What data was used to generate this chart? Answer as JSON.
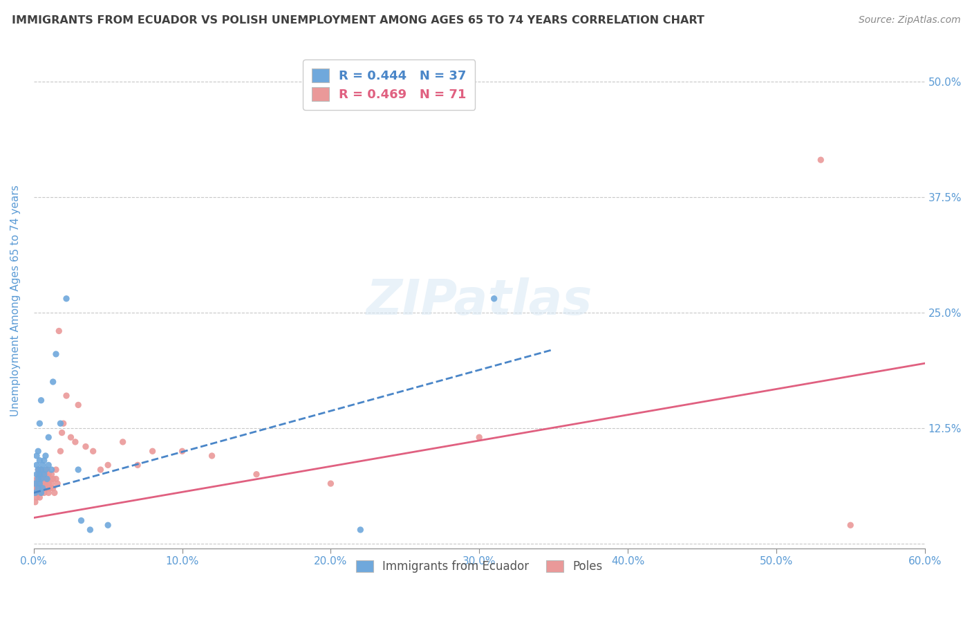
{
  "title": "IMMIGRANTS FROM ECUADOR VS POLISH UNEMPLOYMENT AMONG AGES 65 TO 74 YEARS CORRELATION CHART",
  "source": "Source: ZipAtlas.com",
  "ylabel": "Unemployment Among Ages 65 to 74 years",
  "xlim": [
    0.0,
    0.6
  ],
  "ylim": [
    -0.005,
    0.53
  ],
  "x_ticks": [
    0.0,
    0.1,
    0.2,
    0.3,
    0.4,
    0.5,
    0.6
  ],
  "x_tick_labels": [
    "0.0%",
    "10.0%",
    "20.0%",
    "30.0%",
    "40.0%",
    "50.0%",
    "60.0%"
  ],
  "y_ticks": [
    0.0,
    0.125,
    0.25,
    0.375,
    0.5
  ],
  "y_tick_labels_right": [
    "",
    "12.5%",
    "25.0%",
    "37.5%",
    "50.0%"
  ],
  "ecuador_R": 0.444,
  "ecuador_N": 37,
  "poles_R": 0.469,
  "poles_N": 71,
  "ecuador_color": "#6fa8dc",
  "poles_color": "#ea9999",
  "ecuador_line_color": "#4a86c8",
  "poles_line_color": "#e06080",
  "title_color": "#404040",
  "axis_label_color": "#5b9bd5",
  "tick_label_color": "#5b9bd5",
  "grid_color": "#c8c8c8",
  "background_color": "#ffffff",
  "ecuador_scatter": [
    [
      0.001,
      0.055
    ],
    [
      0.001,
      0.065
    ],
    [
      0.002,
      0.075
    ],
    [
      0.002,
      0.085
    ],
    [
      0.002,
      0.095
    ],
    [
      0.003,
      0.06
    ],
    [
      0.003,
      0.07
    ],
    [
      0.003,
      0.08
    ],
    [
      0.003,
      0.1
    ],
    [
      0.004,
      0.065
    ],
    [
      0.004,
      0.075
    ],
    [
      0.004,
      0.09
    ],
    [
      0.004,
      0.13
    ],
    [
      0.005,
      0.055
    ],
    [
      0.005,
      0.07
    ],
    [
      0.005,
      0.08
    ],
    [
      0.005,
      0.155
    ],
    [
      0.006,
      0.06
    ],
    [
      0.006,
      0.085
    ],
    [
      0.007,
      0.075
    ],
    [
      0.007,
      0.09
    ],
    [
      0.008,
      0.08
    ],
    [
      0.008,
      0.095
    ],
    [
      0.009,
      0.07
    ],
    [
      0.01,
      0.085
    ],
    [
      0.01,
      0.115
    ],
    [
      0.012,
      0.08
    ],
    [
      0.013,
      0.175
    ],
    [
      0.015,
      0.205
    ],
    [
      0.018,
      0.13
    ],
    [
      0.022,
      0.265
    ],
    [
      0.03,
      0.08
    ],
    [
      0.032,
      0.025
    ],
    [
      0.038,
      0.015
    ],
    [
      0.05,
      0.02
    ],
    [
      0.22,
      0.015
    ],
    [
      0.31,
      0.265
    ]
  ],
  "poles_scatter": [
    [
      0.001,
      0.045
    ],
    [
      0.001,
      0.055
    ],
    [
      0.001,
      0.06
    ],
    [
      0.002,
      0.05
    ],
    [
      0.002,
      0.06
    ],
    [
      0.002,
      0.065
    ],
    [
      0.002,
      0.07
    ],
    [
      0.003,
      0.055
    ],
    [
      0.003,
      0.06
    ],
    [
      0.003,
      0.065
    ],
    [
      0.003,
      0.075
    ],
    [
      0.003,
      0.08
    ],
    [
      0.004,
      0.05
    ],
    [
      0.004,
      0.06
    ],
    [
      0.004,
      0.07
    ],
    [
      0.004,
      0.075
    ],
    [
      0.004,
      0.08
    ],
    [
      0.005,
      0.055
    ],
    [
      0.005,
      0.065
    ],
    [
      0.005,
      0.07
    ],
    [
      0.005,
      0.075
    ],
    [
      0.005,
      0.08
    ],
    [
      0.006,
      0.06
    ],
    [
      0.006,
      0.065
    ],
    [
      0.006,
      0.07
    ],
    [
      0.006,
      0.075
    ],
    [
      0.007,
      0.055
    ],
    [
      0.007,
      0.065
    ],
    [
      0.007,
      0.07
    ],
    [
      0.007,
      0.075
    ],
    [
      0.008,
      0.06
    ],
    [
      0.008,
      0.065
    ],
    [
      0.008,
      0.075
    ],
    [
      0.009,
      0.06
    ],
    [
      0.009,
      0.07
    ],
    [
      0.009,
      0.08
    ],
    [
      0.01,
      0.055
    ],
    [
      0.01,
      0.065
    ],
    [
      0.01,
      0.075
    ],
    [
      0.011,
      0.06
    ],
    [
      0.011,
      0.07
    ],
    [
      0.012,
      0.065
    ],
    [
      0.012,
      0.075
    ],
    [
      0.013,
      0.06
    ],
    [
      0.013,
      0.07
    ],
    [
      0.014,
      0.055
    ],
    [
      0.015,
      0.07
    ],
    [
      0.015,
      0.08
    ],
    [
      0.016,
      0.065
    ],
    [
      0.017,
      0.23
    ],
    [
      0.018,
      0.1
    ],
    [
      0.019,
      0.12
    ],
    [
      0.02,
      0.13
    ],
    [
      0.022,
      0.16
    ],
    [
      0.025,
      0.115
    ],
    [
      0.028,
      0.11
    ],
    [
      0.03,
      0.15
    ],
    [
      0.035,
      0.105
    ],
    [
      0.04,
      0.1
    ],
    [
      0.045,
      0.08
    ],
    [
      0.05,
      0.085
    ],
    [
      0.06,
      0.11
    ],
    [
      0.07,
      0.085
    ],
    [
      0.08,
      0.1
    ],
    [
      0.1,
      0.1
    ],
    [
      0.12,
      0.095
    ],
    [
      0.15,
      0.075
    ],
    [
      0.2,
      0.065
    ],
    [
      0.3,
      0.115
    ],
    [
      0.53,
      0.415
    ],
    [
      0.55,
      0.02
    ]
  ],
  "ecuador_trendline": [
    [
      0.0,
      0.055
    ],
    [
      0.35,
      0.21
    ]
  ],
  "poles_trendline": [
    [
      0.0,
      0.028
    ],
    [
      0.6,
      0.195
    ]
  ]
}
